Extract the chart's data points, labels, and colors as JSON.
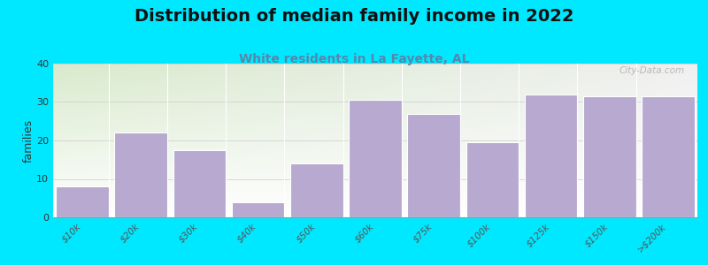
{
  "title": "Distribution of median family income in 2022",
  "subtitle": "White residents in La Fayette, AL",
  "categories": [
    "$10k",
    "$20k",
    "$30k",
    "$40k",
    "$50k",
    "$60k",
    "$75k",
    "$100k",
    "$125k",
    "$150k",
    ">$200k"
  ],
  "values": [
    8,
    22,
    17.5,
    4,
    14,
    30.5,
    27,
    19.5,
    32,
    31.5,
    31.5
  ],
  "bar_color": "#b8a9d0",
  "bar_edgecolor": "#ffffff",
  "ylabel": "families",
  "ylim": [
    0,
    40
  ],
  "yticks": [
    0,
    10,
    20,
    30,
    40
  ],
  "background_outer": "#00e8ff",
  "plot_bg_color_topleft": "#d8eacc",
  "plot_bg_color_topright": "#f0f0f0",
  "plot_bg_color_bottom": "#ffffff",
  "title_fontsize": 14,
  "subtitle_fontsize": 10,
  "subtitle_color": "#5588aa",
  "watermark": "City-Data.com"
}
